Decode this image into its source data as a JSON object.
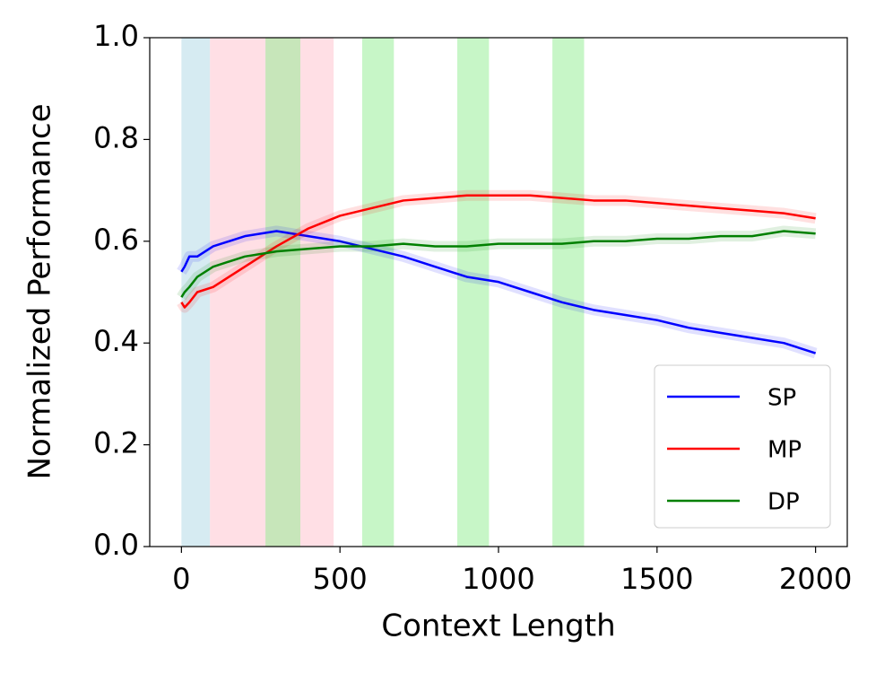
{
  "chart_data": {
    "type": "line",
    "xlabel": "Context Length",
    "ylabel": "Normalized Performance",
    "x": [
      0,
      10,
      25,
      50,
      100,
      200,
      300,
      400,
      500,
      600,
      700,
      800,
      900,
      1000,
      1100,
      1200,
      1300,
      1400,
      1500,
      1600,
      1700,
      1800,
      1900,
      2000
    ],
    "series": [
      {
        "name": "SP",
        "color": "#0000ff",
        "values": [
          0.54,
          0.55,
          0.57,
          0.57,
          0.59,
          0.61,
          0.62,
          0.61,
          0.6,
          0.585,
          0.57,
          0.55,
          0.53,
          0.52,
          0.5,
          0.48,
          0.465,
          0.455,
          0.445,
          0.43,
          0.42,
          0.41,
          0.4,
          0.38
        ]
      },
      {
        "name": "MP",
        "color": "#ff0000",
        "values": [
          0.48,
          0.47,
          0.48,
          0.5,
          0.51,
          0.55,
          0.59,
          0.625,
          0.65,
          0.665,
          0.68,
          0.685,
          0.69,
          0.69,
          0.69,
          0.685,
          0.68,
          0.68,
          0.675,
          0.67,
          0.665,
          0.66,
          0.655,
          0.645
        ]
      },
      {
        "name": "DP",
        "color": "#008000",
        "values": [
          0.49,
          0.5,
          0.51,
          0.53,
          0.55,
          0.57,
          0.58,
          0.585,
          0.59,
          0.59,
          0.595,
          0.59,
          0.59,
          0.595,
          0.595,
          0.595,
          0.6,
          0.6,
          0.605,
          0.605,
          0.61,
          0.61,
          0.62,
          0.615
        ]
      }
    ],
    "shaded_regions": [
      {
        "x0": 0,
        "x1": 90,
        "color": "#add8e6"
      },
      {
        "x0": 90,
        "x1": 480,
        "color": "#ffc0cb"
      },
      {
        "x0": 265,
        "x1": 375,
        "color": "#90ee90"
      },
      {
        "x0": 570,
        "x1": 670,
        "color": "#90ee90"
      },
      {
        "x0": 870,
        "x1": 970,
        "color": "#90ee90"
      },
      {
        "x0": 1170,
        "x1": 1270,
        "color": "#90ee90"
      }
    ],
    "xlim": [
      -100,
      2100
    ],
    "ylim": [
      0,
      1
    ],
    "xticks": [
      0,
      500,
      1000,
      1500,
      2000
    ],
    "yticks": [
      {
        "value": 0,
        "label": "0.0"
      },
      {
        "value": 0.2,
        "label": "0.2"
      },
      {
        "value": 0.4,
        "label": "0.4"
      },
      {
        "value": 0.6,
        "label": "0.6"
      },
      {
        "value": 0.8,
        "label": "0.8"
      },
      {
        "value": 1,
        "label": "1.0"
      }
    ],
    "grid": false,
    "legend": "lower right"
  }
}
